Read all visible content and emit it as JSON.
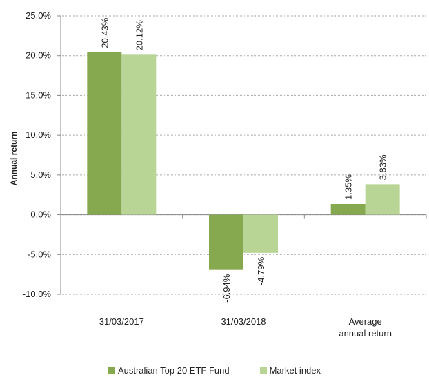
{
  "chart_data": {
    "type": "bar",
    "y_label": "Annual return",
    "categories": [
      "31/03/2017",
      "31/03/2018",
      "Average annual return"
    ],
    "series": [
      {
        "name": "Australian Top 20 ETF Fund",
        "color": "#86a84f",
        "values": [
          20.43,
          -6.94,
          1.35
        ],
        "value_labels": [
          "20.43%",
          "-6.94%",
          "1.35%"
        ]
      },
      {
        "name": "Market index",
        "color": "#b9d596",
        "values": [
          20.12,
          -4.79,
          3.83
        ],
        "value_labels": [
          "20.12%",
          "-4.79%",
          "3.83%"
        ]
      }
    ],
    "ylim": [
      -10,
      25
    ],
    "yticks": [
      {
        "value": -10,
        "label": "-10.0%"
      },
      {
        "value": -5,
        "label": "-5.0%"
      },
      {
        "value": 0,
        "label": "0.0%"
      },
      {
        "value": 5,
        "label": "5.0%"
      },
      {
        "value": 10,
        "label": "10.0%"
      },
      {
        "value": 15,
        "label": "15.0%"
      },
      {
        "value": 20,
        "label": "20.0%"
      },
      {
        "value": 25,
        "label": "25.0%"
      }
    ],
    "grid": true,
    "legend": "bottom"
  }
}
